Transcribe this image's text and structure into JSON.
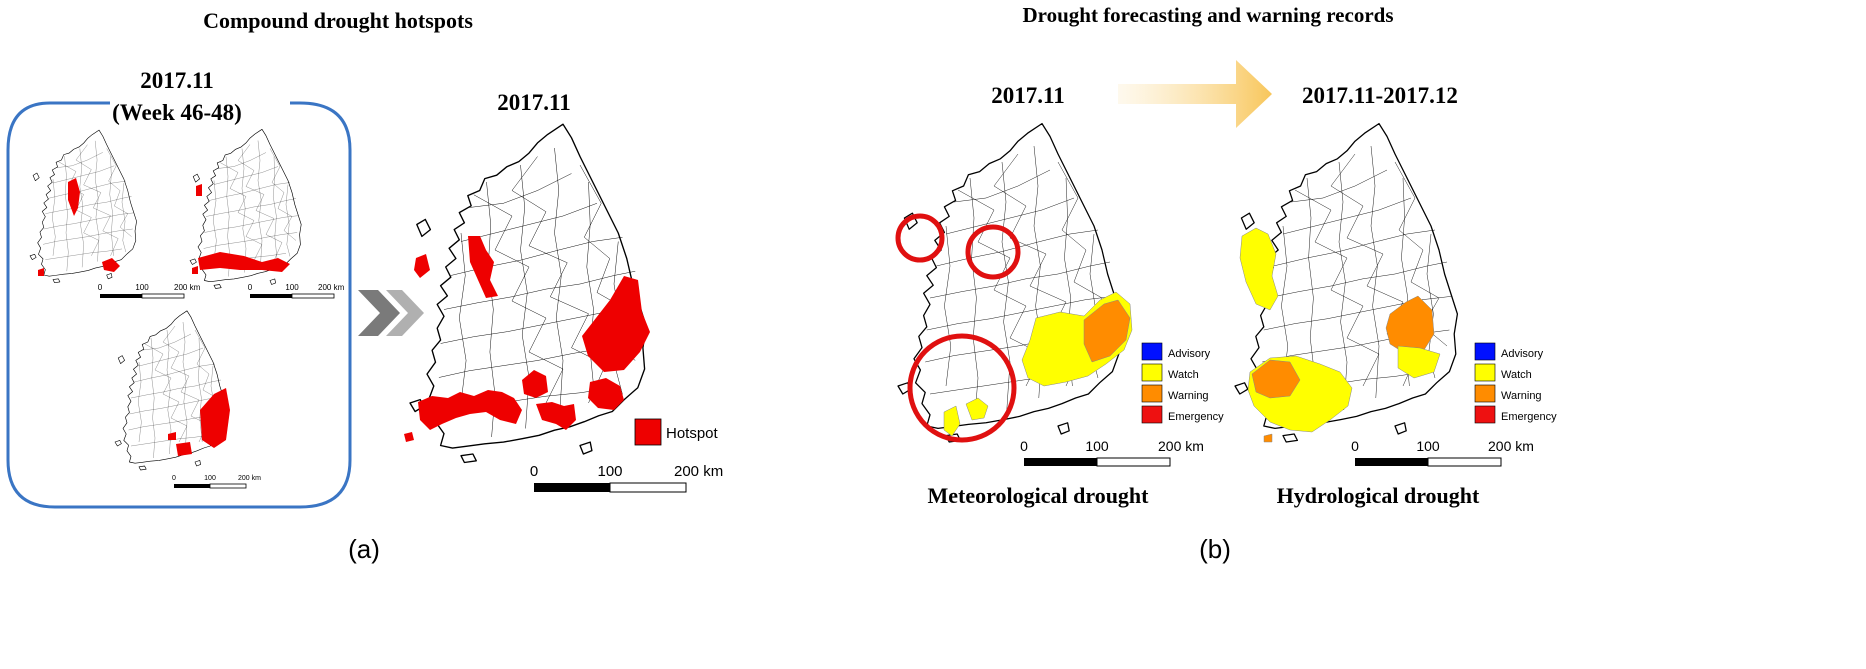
{
  "panel_a": {
    "title": "Compound drought hotspots",
    "period_label_line1": "2017.11",
    "period_label_line2": "(Week 46-48)",
    "summary_map_label": "2017.11",
    "legend": [
      {
        "label": "Hotspot",
        "color": "#ee0000"
      }
    ],
    "small_scale": {
      "ticks": [
        "0",
        "100",
        "200 km"
      ]
    },
    "large_scale": {
      "ticks": [
        "0",
        "100",
        "200 km"
      ]
    },
    "panel_caption": "(a)"
  },
  "panel_b": {
    "title": "Drought forecasting and warning records",
    "left_map_date": "2017.11",
    "right_map_date": "2017.11-2017.12",
    "left_map_caption": "Meteorological drought",
    "right_map_caption": "Hydrological drought",
    "legend": [
      {
        "label": "Advisory",
        "color": "#0010ff"
      },
      {
        "label": "Watch",
        "color": "#ffff00"
      },
      {
        "label": "Warning",
        "color": "#ff8c00"
      },
      {
        "label": "Emergency",
        "color": "#ee1111"
      }
    ],
    "scale": {
      "ticks": [
        "0",
        "100",
        "200 km"
      ]
    },
    "panel_caption": "(b)"
  },
  "colors": {
    "bracket": "#3a75c4",
    "arrow_gray": "#7a7a7a",
    "arrow_gradient_end": "#f8c65a",
    "highlight_circle": "#e01010"
  }
}
